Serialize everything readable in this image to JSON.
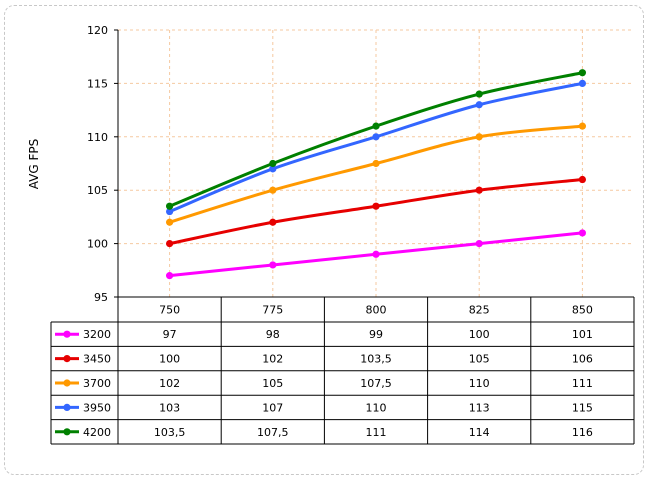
{
  "chart_data": {
    "type": "line",
    "title": "",
    "xlabel": "",
    "ylabel": "AVG FPS",
    "ylim": [
      95,
      120
    ],
    "yticks": [
      95,
      100,
      105,
      110,
      115,
      120
    ],
    "grid": true,
    "legend_placement": "data-table-left",
    "categories": [
      "750",
      "775",
      "800",
      "825",
      "850"
    ],
    "series": [
      {
        "name": "3200",
        "color": "#ff00ff",
        "values": [
          97,
          98,
          99,
          100,
          101
        ],
        "labels": [
          "97",
          "98",
          "99",
          "100",
          "101"
        ]
      },
      {
        "name": "3450",
        "color": "#e60000",
        "values": [
          100,
          102,
          103.5,
          105,
          106
        ],
        "labels": [
          "100",
          "102",
          "103,5",
          "105",
          "106"
        ]
      },
      {
        "name": "3700",
        "color": "#ff9900",
        "values": [
          102,
          105,
          107.5,
          110,
          111
        ],
        "labels": [
          "102",
          "105",
          "107,5",
          "110",
          "111"
        ]
      },
      {
        "name": "3950",
        "color": "#3366ff",
        "values": [
          103,
          107,
          110,
          113,
          115
        ],
        "labels": [
          "103",
          "107",
          "110",
          "113",
          "115"
        ]
      },
      {
        "name": "4200",
        "color": "#008000",
        "values": [
          103.5,
          107.5,
          111,
          114,
          116
        ],
        "labels": [
          "103,5",
          "107,5",
          "111",
          "114",
          "116"
        ]
      }
    ]
  }
}
